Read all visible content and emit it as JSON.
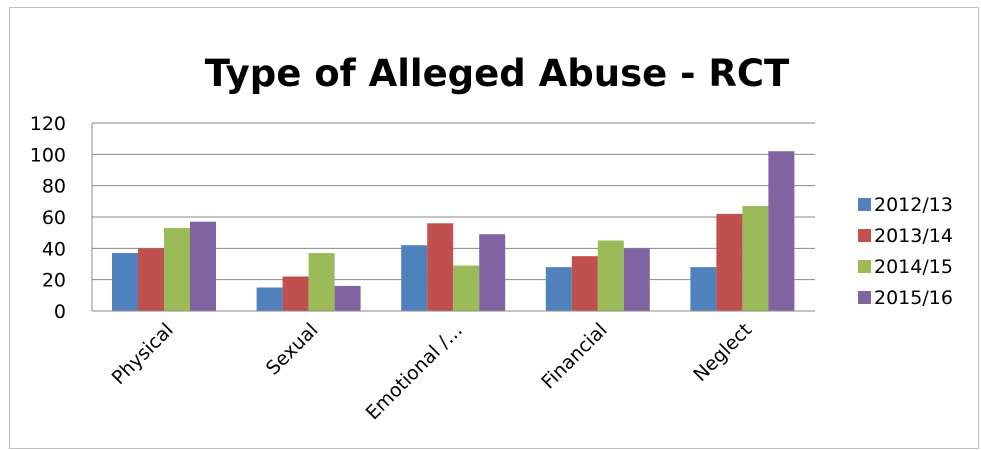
{
  "chart_data": {
    "type": "bar",
    "title": "Type of Alleged Abuse - RCT",
    "categories": [
      "Physical",
      "Sexual",
      "Emotional /…",
      "Financial",
      "Neglect"
    ],
    "series": [
      {
        "name": "2012/13",
        "color": "#4f81bd",
        "values": [
          37,
          15,
          42,
          28,
          28
        ]
      },
      {
        "name": "2013/14",
        "color": "#c0504d",
        "values": [
          40,
          22,
          56,
          35,
          62
        ]
      },
      {
        "name": "2014/15",
        "color": "#9bbb59",
        "values": [
          53,
          37,
          29,
          45,
          67
        ]
      },
      {
        "name": "2015/16",
        "color": "#8064a2",
        "values": [
          57,
          16,
          49,
          40,
          102
        ]
      }
    ],
    "yticks": [
      0,
      20,
      40,
      60,
      80,
      100,
      120
    ],
    "ylim": [
      0,
      120
    ],
    "grid": true,
    "legend": "right"
  }
}
